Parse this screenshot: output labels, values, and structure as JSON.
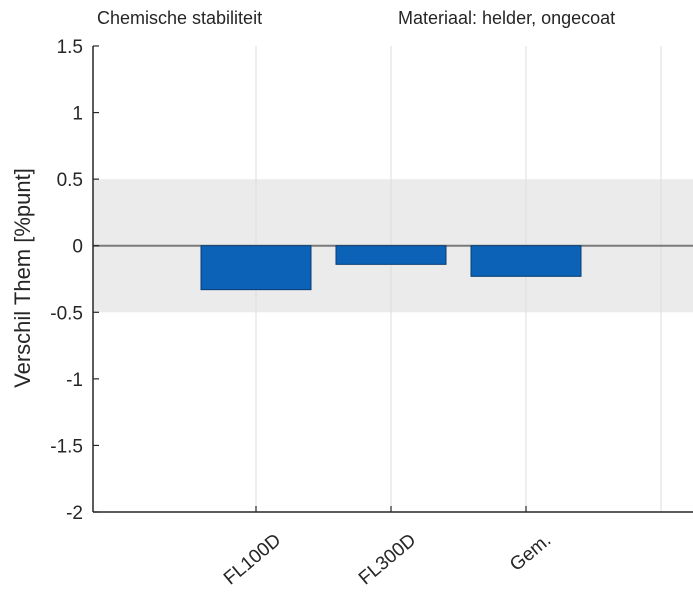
{
  "chart_data": {
    "type": "bar",
    "title_left": "Chemische stabiliteit",
    "title_right": "Materiaal: helder, ongecoat",
    "ylabel": "Verschil Them [%punt]",
    "xlabel": "",
    "categories": [
      "FL100D",
      "FL300D",
      "Gem."
    ],
    "values": [
      -0.33,
      -0.14,
      -0.23
    ],
    "ylim": [
      -2,
      1.5
    ],
    "yticks": [
      1.5,
      1,
      0.5,
      0,
      -0.5,
      -1,
      -1.5,
      -2
    ],
    "ytick_labels": [
      "1.5",
      "1",
      "0.5",
      "0",
      "-0.5",
      "-1",
      "-1.5",
      "-2"
    ],
    "shaded_band": [
      -0.5,
      0.5
    ],
    "grid": true,
    "bar_color": "#0b62b6",
    "band_color": "#ebebeb",
    "grid_color": "#dcdcdc"
  }
}
